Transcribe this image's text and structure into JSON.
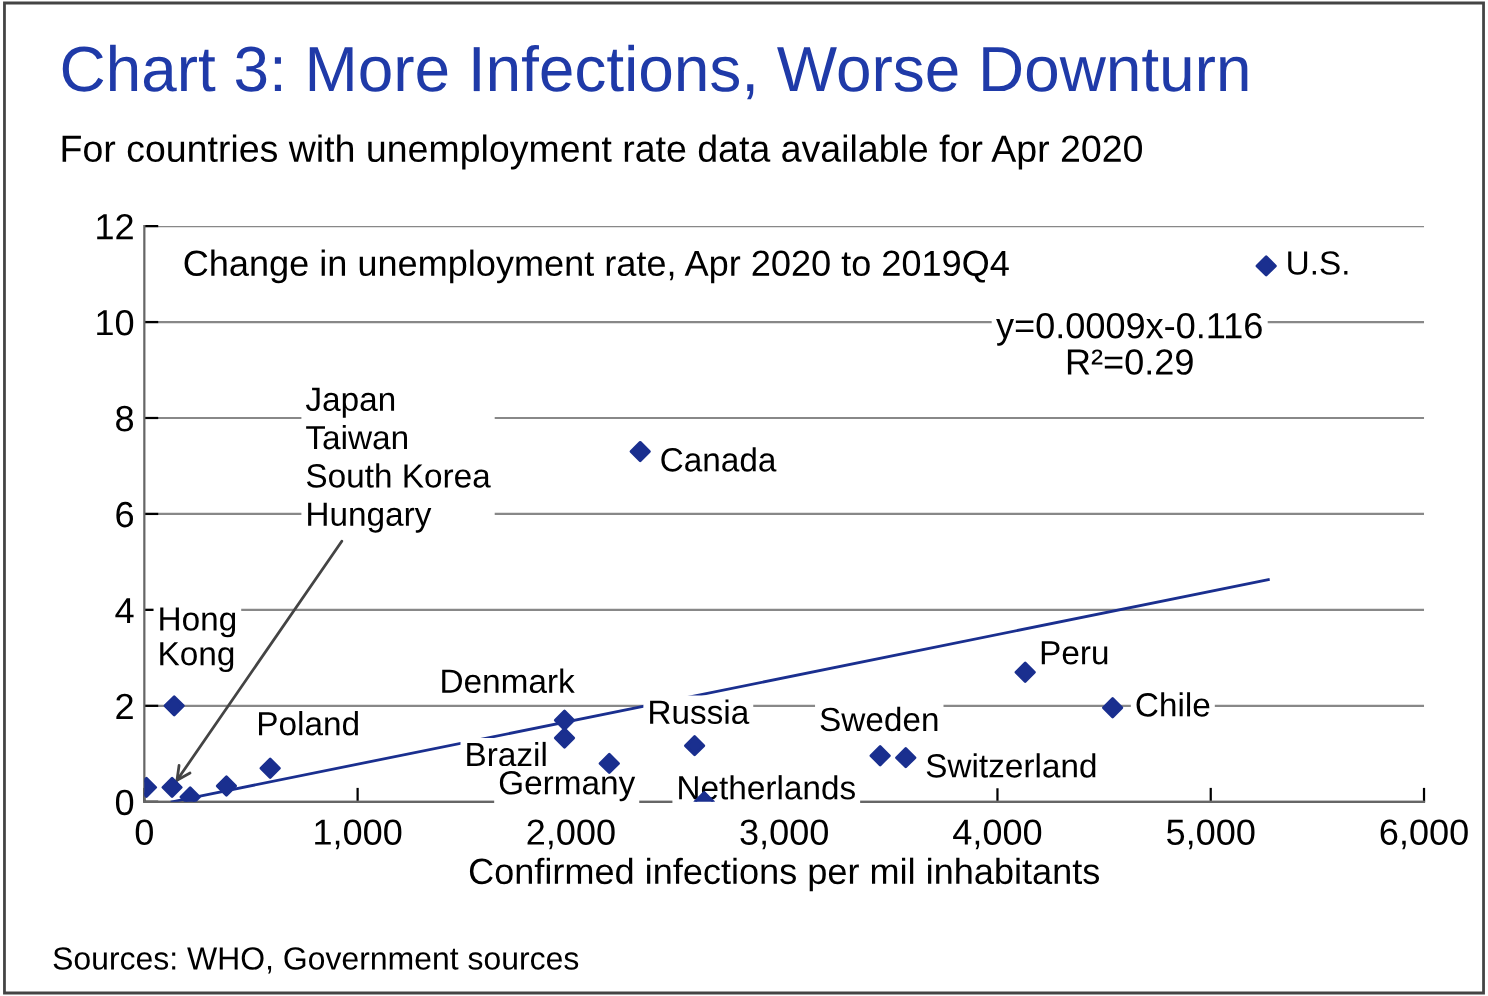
{
  "chart_data": {
    "type": "scatter",
    "title": "Chart 3: More Infections, Worse Downturn",
    "subtitle": "For countries with unemployment rate data available for Apr 2020",
    "xlabel": "Confirmed infections per mil inhabitants",
    "xlim": [
      0,
      6000
    ],
    "xticks": [
      {
        "value": 0,
        "label": "0"
      },
      {
        "value": 1000,
        "label": "1,000"
      },
      {
        "value": 2000,
        "label": "2,000"
      },
      {
        "value": 3000,
        "label": "3,000"
      },
      {
        "value": 4000,
        "label": "4,000"
      },
      {
        "value": 5000,
        "label": "5,000"
      },
      {
        "value": 6000,
        "label": "6,000"
      }
    ],
    "ylim": [
      0,
      12
    ],
    "yticks": [
      0,
      2,
      4,
      6,
      8,
      10,
      12
    ],
    "grid": "y",
    "legend": false,
    "series": [
      {
        "marker": "diamond",
        "color": "#1a2f8f",
        "x": [
          10,
          130,
          215,
          385,
          140,
          590,
          1970,
          1970,
          2180,
          2580,
          2625,
          3450,
          3570,
          4130,
          4540,
          5260,
          2325
        ],
        "values": [
          0.3,
          0.3,
          0.1,
          0.33,
          2.0,
          0.7,
          1.7,
          1.33,
          0.8,
          1.17,
          0.0,
          0.96,
          0.92,
          2.7,
          1.96,
          11.17,
          7.3
        ]
      },
      {
        "type": "line",
        "color": "#1a2f8f",
        "line_style": "solid",
        "x": [
          130,
          5270
        ],
        "values": [
          0.0,
          4.63
        ]
      }
    ],
    "annotations": [
      "Change in unemployment rate, Apr 2020 to 2019Q4",
      "y=0.0009x-0.116\nR²=0.29",
      {
        "text": "Japan\nTaiwan\nSouth Korea\nHungary",
        "x": 130,
        "y": 0.3
      },
      {
        "text": "Hong\nKong",
        "x": 140,
        "y": 2.0
      },
      {
        "text": "Poland",
        "x": 590,
        "y": 0.7
      },
      {
        "text": "Denmark",
        "x": 1970,
        "y": 1.7
      },
      {
        "text": "Brazil",
        "x": 1970,
        "y": 1.33
      },
      {
        "text": "Germany",
        "x": 2180,
        "y": 0.8
      },
      {
        "text": "Russia",
        "x": 2580,
        "y": 1.17
      },
      {
        "text": "Netherlands",
        "x": 2625,
        "y": 0.0
      },
      {
        "text": "Sweden",
        "x": 3450,
        "y": 0.96
      },
      {
        "text": "Switzerland",
        "x": 3570,
        "y": 0.92
      },
      {
        "text": "Peru",
        "x": 4130,
        "y": 2.7
      },
      {
        "text": "Chile",
        "x": 4540,
        "y": 1.96
      },
      {
        "text": "U.S.",
        "x": 5260,
        "y": 11.17
      },
      {
        "text": "Canada",
        "x": 2325,
        "y": 7.3
      },
      "Sources: WHO, Government sources"
    ]
  }
}
